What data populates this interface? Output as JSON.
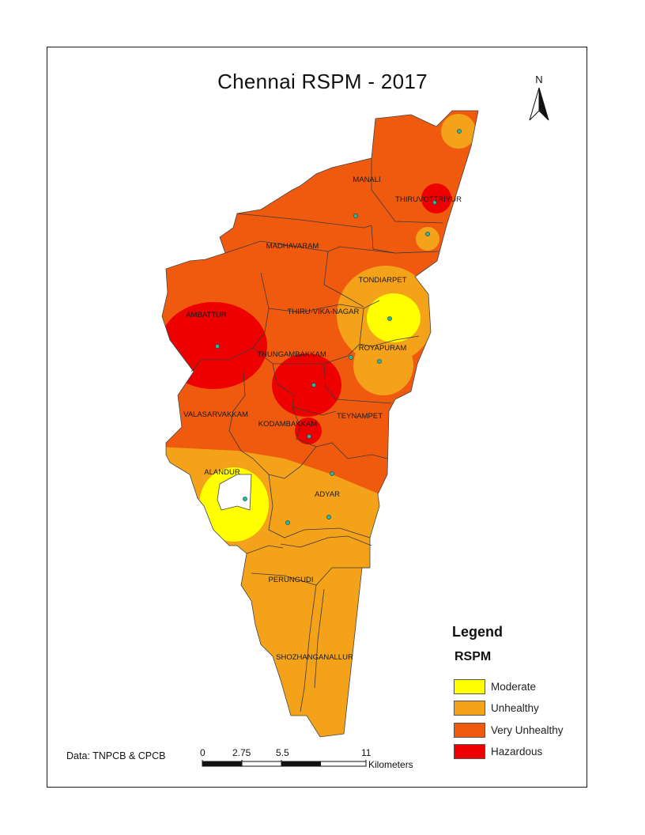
{
  "map": {
    "title": "Chennai RSPM - 2017",
    "north_label": "N",
    "credit": "Data: TNPCB & CPCB",
    "places": [
      "MANALI",
      "THIRUVOTTRIYUR",
      "MADHAVARAM",
      "TONDIARPET",
      "AMBATTUR",
      "THIRU-VIKA-NAGAR",
      "ROYAPURAM",
      "TNUNGAMBAKKAM",
      "VALASARVAKKAM",
      "KODAMBAKKAM",
      "TEYNAMPET",
      "ALANDUR",
      "ADYAR",
      "PERUNGUDI",
      "SHOZHANGANALLUR"
    ]
  },
  "legend": {
    "title": "Legend",
    "subtitle": "RSPM",
    "items": [
      {
        "label": "Moderate",
        "color": "#ffff00"
      },
      {
        "label": "Unhealthy",
        "color": "#f5a21b"
      },
      {
        "label": "Very Unhealthy",
        "color": "#f05a0f"
      },
      {
        "label": "Hazardous",
        "color": "#ee0000"
      }
    ]
  },
  "scale_bar": {
    "ticks": [
      "0",
      "2.75",
      "5.5",
      "11"
    ],
    "unit": "Kilometers"
  }
}
